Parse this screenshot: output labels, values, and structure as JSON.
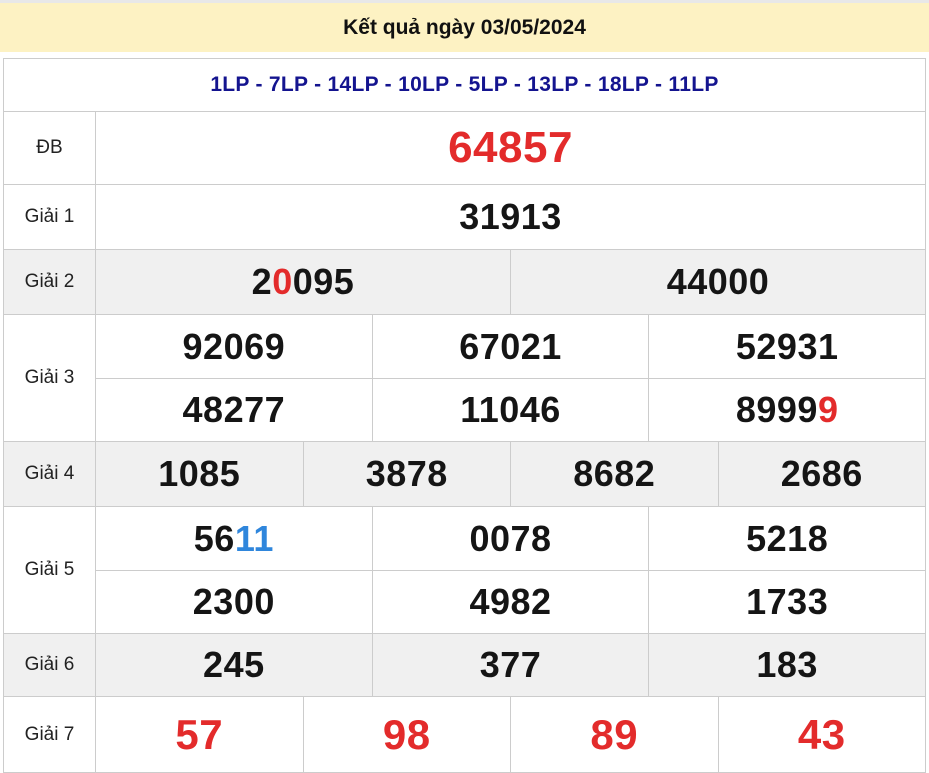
{
  "header": {
    "title": "Kết quả ngày 03/05/2024"
  },
  "subheader": {
    "text": "1LP - 7LP - 14LP - 10LP - 5LP - 13LP - 18LP - 11LP"
  },
  "colors": {
    "banner_bg": "#fdf2c3",
    "subheader_text": "#14148f",
    "row_shade": "#f0f0f0",
    "border": "#cccccc",
    "black": "#151515",
    "red": "#e32b2b",
    "blue": "#2f86dc"
  },
  "table": {
    "rows": [
      {
        "label": "ĐB",
        "kind": "db",
        "shade": false,
        "lines": [
          [
            [
              {
                "t": "64857",
                "c": "red"
              }
            ]
          ]
        ]
      },
      {
        "label": "Giải 1",
        "kind": "g1",
        "shade": false,
        "lines": [
          [
            [
              {
                "t": "31913",
                "c": "black"
              }
            ]
          ]
        ]
      },
      {
        "label": "Giải 2",
        "kind": "g2",
        "shade": true,
        "lines": [
          [
            [
              {
                "t": "2",
                "c": "black"
              },
              {
                "t": "0",
                "c": "red"
              },
              {
                "t": "095",
                "c": "black"
              }
            ],
            [
              {
                "t": "44000",
                "c": "black"
              }
            ]
          ]
        ]
      },
      {
        "label": "Giải 3",
        "kind": "g3",
        "shade": false,
        "lines": [
          [
            [
              {
                "t": "92069",
                "c": "black"
              }
            ],
            [
              {
                "t": "67021",
                "c": "black"
              }
            ],
            [
              {
                "t": "52931",
                "c": "black"
              }
            ]
          ],
          [
            [
              {
                "t": "48277",
                "c": "black"
              }
            ],
            [
              {
                "t": "11046",
                "c": "black"
              }
            ],
            [
              {
                "t": "8999",
                "c": "black"
              },
              {
                "t": "9",
                "c": "red"
              }
            ]
          ]
        ]
      },
      {
        "label": "Giải 4",
        "kind": "g4",
        "shade": true,
        "lines": [
          [
            [
              {
                "t": "1085",
                "c": "black"
              }
            ],
            [
              {
                "t": "3878",
                "c": "black"
              }
            ],
            [
              {
                "t": "8682",
                "c": "black"
              }
            ],
            [
              {
                "t": "2686",
                "c": "black"
              }
            ]
          ]
        ]
      },
      {
        "label": "Giải 5",
        "kind": "g5",
        "shade": false,
        "lines": [
          [
            [
              {
                "t": "56",
                "c": "black"
              },
              {
                "t": "11",
                "c": "blue"
              }
            ],
            [
              {
                "t": "0078",
                "c": "black"
              }
            ],
            [
              {
                "t": "5218",
                "c": "black"
              }
            ]
          ],
          [
            [
              {
                "t": "2300",
                "c": "black"
              }
            ],
            [
              {
                "t": "4982",
                "c": "black"
              }
            ],
            [
              {
                "t": "1733",
                "c": "black"
              }
            ]
          ]
        ]
      },
      {
        "label": "Giải 6",
        "kind": "g6",
        "shade": true,
        "lines": [
          [
            [
              {
                "t": "245",
                "c": "black"
              }
            ],
            [
              {
                "t": "377",
                "c": "black"
              }
            ],
            [
              {
                "t": "183",
                "c": "black"
              }
            ]
          ]
        ]
      },
      {
        "label": "Giải 7",
        "kind": "g7",
        "shade": false,
        "lines": [
          [
            [
              {
                "t": "57",
                "c": "red"
              }
            ],
            [
              {
                "t": "98",
                "c": "red"
              }
            ],
            [
              {
                "t": "89",
                "c": "red"
              }
            ],
            [
              {
                "t": "43",
                "c": "red"
              }
            ]
          ]
        ]
      }
    ]
  }
}
